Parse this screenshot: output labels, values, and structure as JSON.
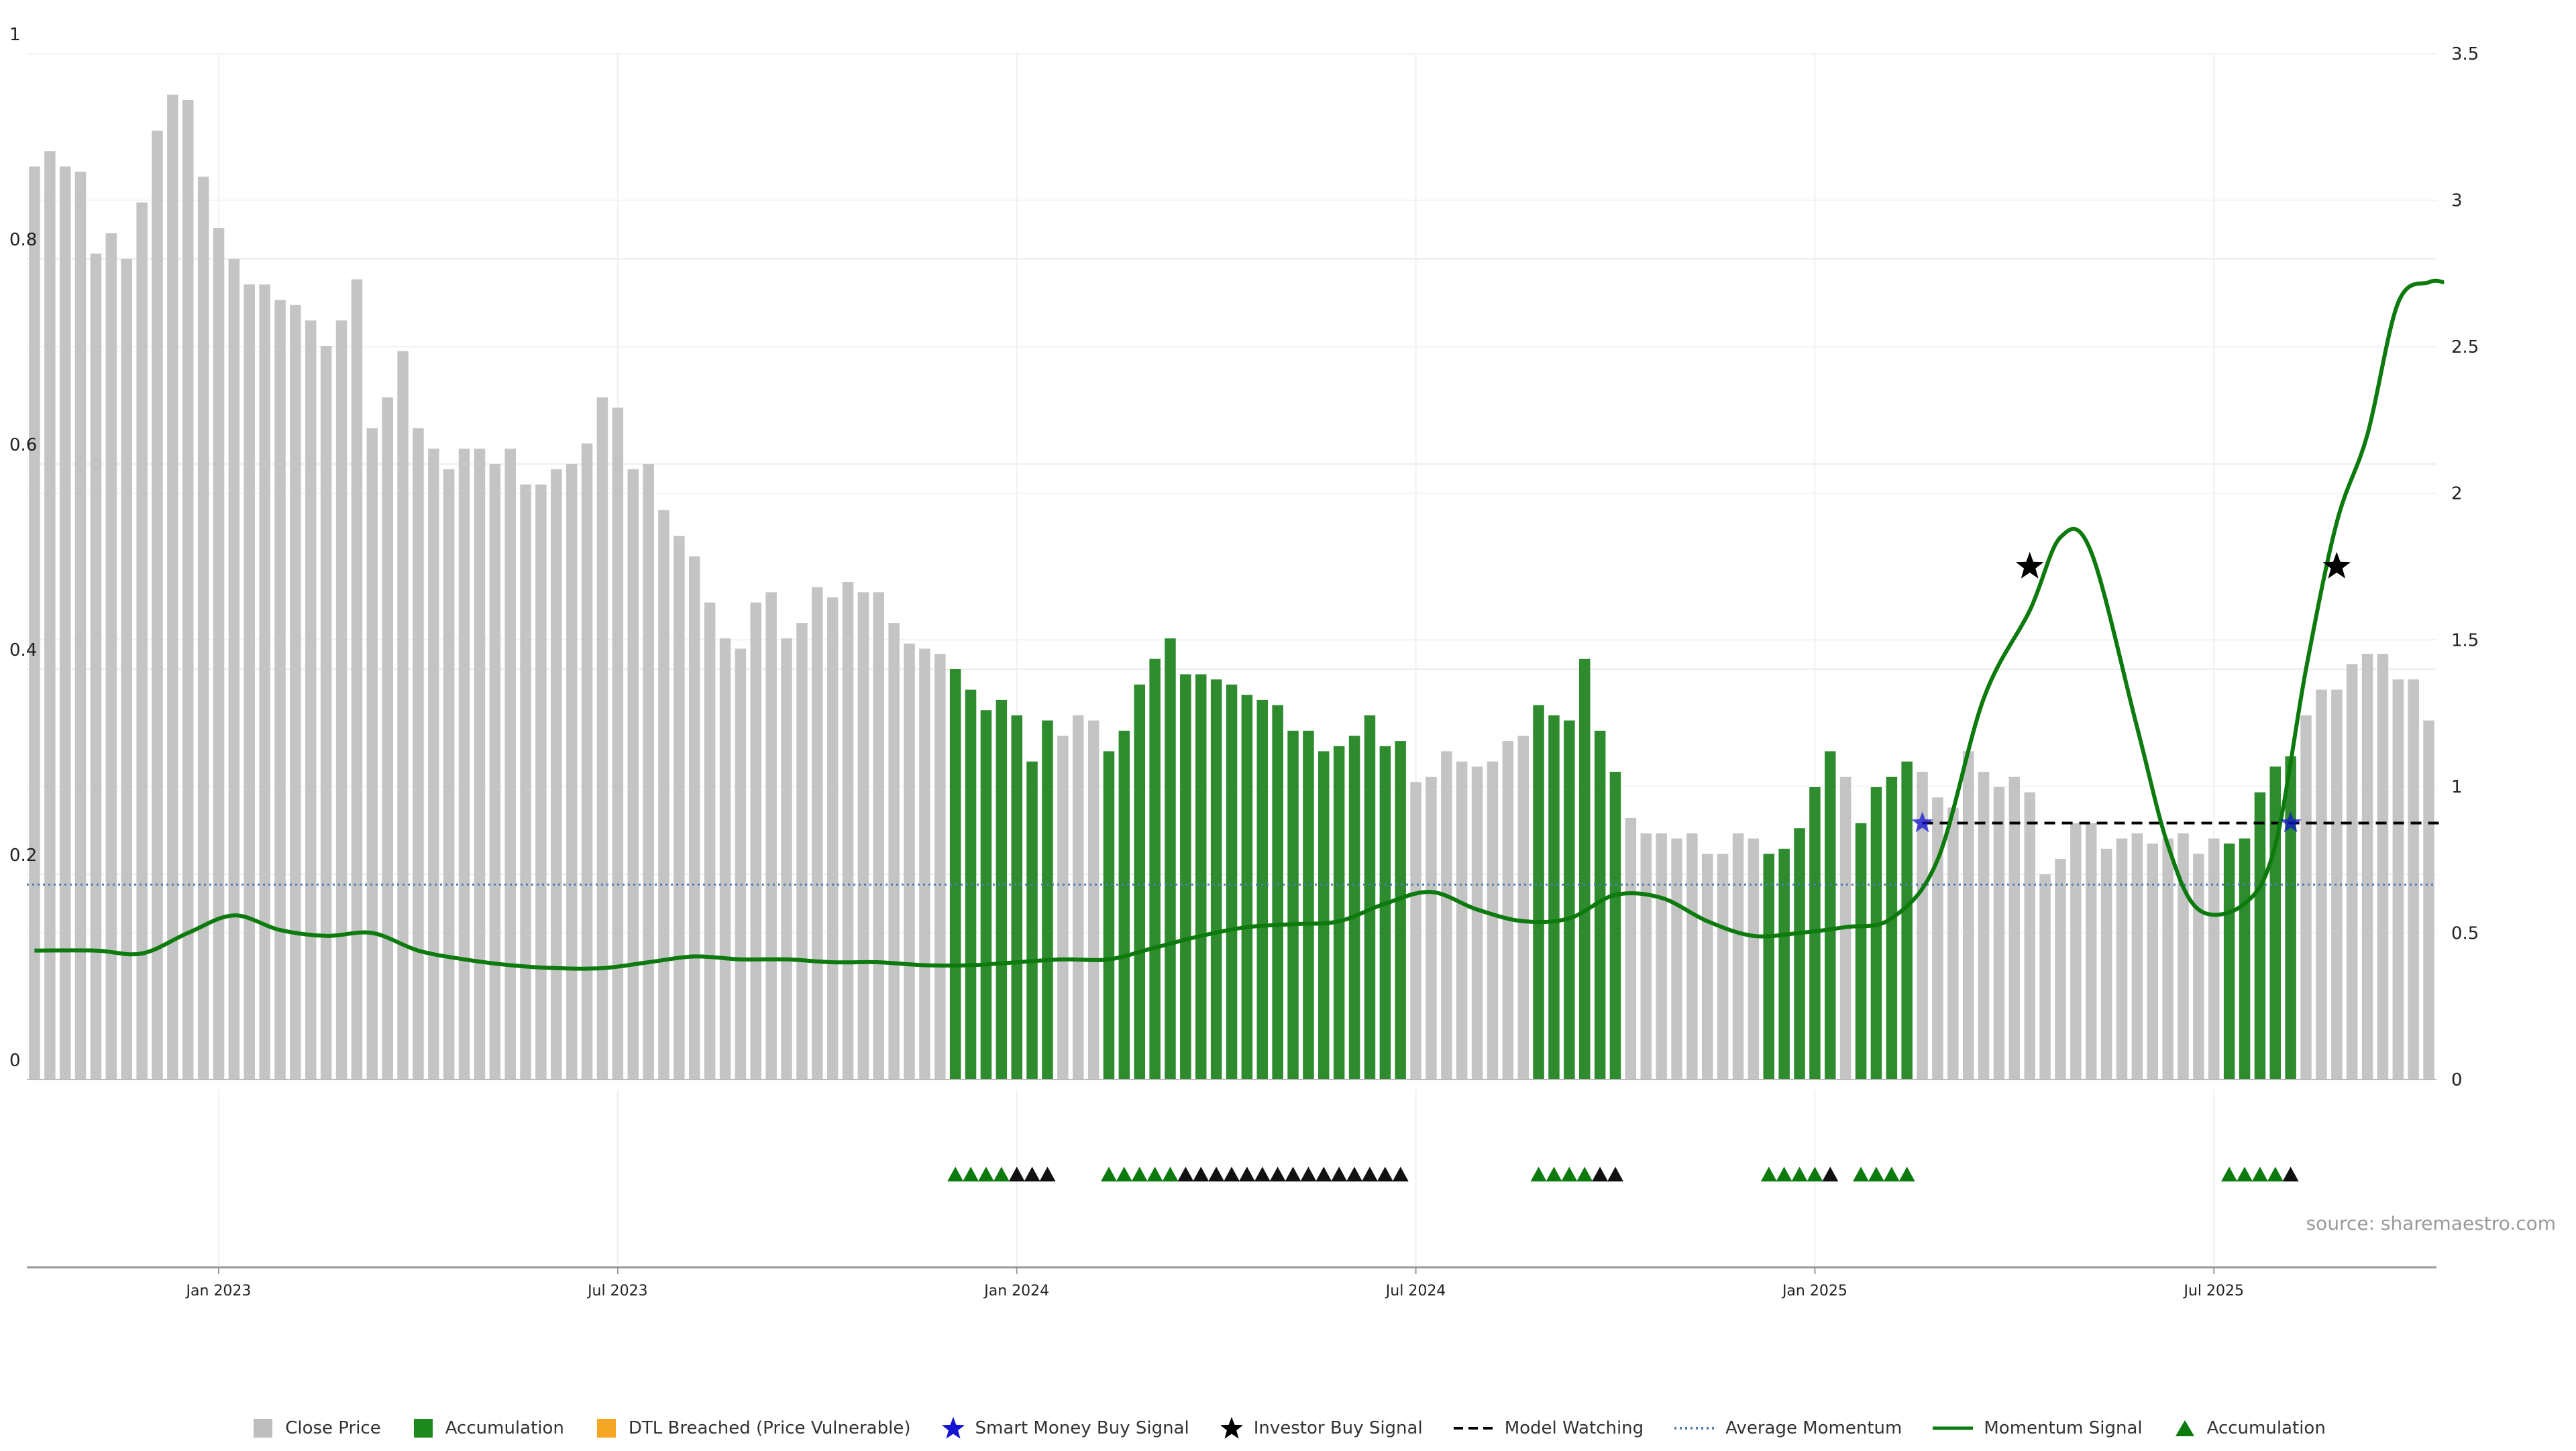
{
  "chart_data": {
    "type": "bar",
    "title": "",
    "source": "source: sharemaestro.com",
    "x_ticks": [
      "Jan 2023",
      "Jul 2023",
      "Jan 2024",
      "Jul 2024",
      "Jan 2025",
      "Jul 2025"
    ],
    "x_tick_week_index": [
      12,
      38,
      64,
      90,
      116,
      142
    ],
    "y_left": {
      "ylim": [
        0,
        1
      ],
      "ticks": [
        "0",
        "0.2",
        "0.4",
        "0.6",
        "0.8",
        "1"
      ]
    },
    "y_right": {
      "ylim": [
        0,
        3.5
      ],
      "ticks": [
        "0",
        "0.5",
        "1",
        "1.5",
        "2",
        "2.5",
        "3",
        "3.5"
      ]
    },
    "grid": true,
    "colors": {
      "close_price": "#c4c4c4",
      "accumulation": "#2e8b2e",
      "dtl_breached": "#f5a623",
      "smart_money": "#1414d2",
      "investor": "#000000",
      "model_watching": "#000000",
      "average_momentum": "#4a7eb5",
      "momentum_signal": "#0d7a0d",
      "accumulation_marker": "#0d7a0d"
    },
    "bars": {
      "values": [
        0.89,
        0.905,
        0.89,
        0.885,
        0.805,
        0.825,
        0.8,
        0.855,
        0.925,
        0.96,
        0.955,
        0.88,
        0.83,
        0.8,
        0.775,
        0.775,
        0.76,
        0.755,
        0.74,
        0.715,
        0.74,
        0.78,
        0.635,
        0.665,
        0.71,
        0.635,
        0.615,
        0.595,
        0.615,
        0.615,
        0.6,
        0.615,
        0.58,
        0.58,
        0.595,
        0.6,
        0.62,
        0.665,
        0.655,
        0.595,
        0.6,
        0.555,
        0.53,
        0.51,
        0.465,
        0.43,
        0.42,
        0.465,
        0.475,
        0.43,
        0.445,
        0.48,
        0.47,
        0.485,
        0.475,
        0.475,
        0.445,
        0.425,
        0.42,
        0.415,
        0.4,
        0.38,
        0.36,
        0.37,
        0.355,
        0.31,
        0.35,
        0.335,
        0.355,
        0.35,
        0.32,
        0.34,
        0.385,
        0.41,
        0.43,
        0.395,
        0.395,
        0.39,
        0.385,
        0.375,
        0.37,
        0.365,
        0.34,
        0.34,
        0.32,
        0.325,
        0.335,
        0.355,
        0.325,
        0.33,
        0.29,
        0.295,
        0.32,
        0.31,
        0.305,
        0.31,
        0.33,
        0.335,
        0.365,
        0.355,
        0.35,
        0.41,
        0.34,
        0.3,
        0.255,
        0.24,
        0.24,
        0.235,
        0.24,
        0.22,
        0.22,
        0.24,
        0.235,
        0.22,
        0.225,
        0.245,
        0.285,
        0.32,
        0.295,
        0.25,
        0.285,
        0.295,
        0.31,
        0.3,
        0.275,
        0.265,
        0.32,
        0.3,
        0.285,
        0.295,
        0.28,
        0.2,
        0.215,
        0.25,
        0.25,
        0.225,
        0.235,
        0.24,
        0.23,
        0.235,
        0.24,
        0.22,
        0.235,
        0.23,
        0.235,
        0.28,
        0.305,
        0.315,
        0.355,
        0.38,
        0.38,
        0.405,
        0.415,
        0.415,
        0.39,
        0.39,
        0.35
      ],
      "accumulation_ranges": [
        [
          60,
          66
        ],
        [
          70,
          89
        ],
        [
          98,
          103
        ],
        [
          113,
          117
        ],
        [
          119,
          122
        ],
        [
          143,
          147
        ]
      ]
    },
    "momentum_signal": {
      "points": [
        [
          0,
          0.44
        ],
        [
          4,
          0.44
        ],
        [
          7,
          0.43
        ],
        [
          10,
          0.5
        ],
        [
          13,
          0.56
        ],
        [
          16,
          0.51
        ],
        [
          19,
          0.49
        ],
        [
          22,
          0.5
        ],
        [
          25,
          0.44
        ],
        [
          28,
          0.41
        ],
        [
          31,
          0.39
        ],
        [
          34,
          0.38
        ],
        [
          37,
          0.38
        ],
        [
          40,
          0.4
        ],
        [
          43,
          0.42
        ],
        [
          46,
          0.41
        ],
        [
          49,
          0.41
        ],
        [
          52,
          0.4
        ],
        [
          55,
          0.4
        ],
        [
          58,
          0.39
        ],
        [
          61,
          0.39
        ],
        [
          64,
          0.4
        ],
        [
          67,
          0.41
        ],
        [
          70,
          0.41
        ],
        [
          73,
          0.45
        ],
        [
          76,
          0.49
        ],
        [
          79,
          0.52
        ],
        [
          82,
          0.53
        ],
        [
          85,
          0.54
        ],
        [
          88,
          0.6
        ],
        [
          91,
          0.64
        ],
        [
          94,
          0.58
        ],
        [
          97,
          0.54
        ],
        [
          100,
          0.55
        ],
        [
          103,
          0.63
        ],
        [
          106,
          0.62
        ],
        [
          109,
          0.54
        ],
        [
          112,
          0.49
        ],
        [
          115,
          0.5
        ],
        [
          118,
          0.52
        ],
        [
          121,
          0.55
        ],
        [
          124,
          0.75
        ],
        [
          127,
          1.3
        ],
        [
          130,
          1.6
        ],
        [
          132,
          1.85
        ],
        [
          134,
          1.8
        ],
        [
          137,
          1.2
        ],
        [
          139,
          0.8
        ],
        [
          141,
          0.58
        ],
        [
          144,
          0.6
        ],
        [
          146,
          0.8
        ],
        [
          148,
          1.4
        ],
        [
          150,
          1.9
        ],
        [
          152,
          2.2
        ],
        [
          154,
          2.65
        ],
        [
          156,
          2.72
        ],
        [
          157,
          2.72
        ]
      ]
    },
    "average_momentum": {
      "value": 0.19
    },
    "model_watching": {
      "x_range": [
        123,
        157
      ],
      "value": 0.25
    },
    "smart_money_signals": [
      [
        123,
        0.25
      ],
      [
        147,
        0.25
      ]
    ],
    "investor_signals": [
      [
        130,
        0.5
      ],
      [
        150,
        0.5
      ]
    ],
    "signal_markers": {
      "green": [
        60,
        61,
        62,
        63,
        70,
        71,
        72,
        73,
        74,
        98,
        99,
        100,
        101,
        113,
        114,
        115,
        116,
        119,
        120,
        121,
        122,
        143,
        144,
        145,
        146
      ],
      "black": [
        64,
        65,
        66,
        75,
        76,
        77,
        78,
        79,
        80,
        81,
        82,
        83,
        84,
        85,
        86,
        87,
        88,
        89,
        102,
        103,
        117,
        147
      ]
    }
  },
  "legend": [
    {
      "label": "Close Price",
      "icon": "square",
      "color": "#bdbdbd"
    },
    {
      "label": "Accumulation",
      "icon": "square",
      "color": "#1e8a1e"
    },
    {
      "label": "DTL Breached (Price Vulnerable)",
      "icon": "square",
      "color": "#f5a623"
    },
    {
      "label": "Smart Money Buy Signal",
      "icon": "star",
      "color": "#1414d2"
    },
    {
      "label": "Investor Buy Signal",
      "icon": "star",
      "color": "#000000"
    },
    {
      "label": "Model Watching",
      "icon": "dashed-line",
      "color": "#000000"
    },
    {
      "label": "Average Momentum",
      "icon": "dotted-line",
      "color": "#4a7eb5"
    },
    {
      "label": "Momentum Signal",
      "icon": "solid-line",
      "color": "#0d7a0d"
    },
    {
      "label": "Accumulation",
      "icon": "triangle",
      "color": "#0d7a0d"
    }
  ]
}
